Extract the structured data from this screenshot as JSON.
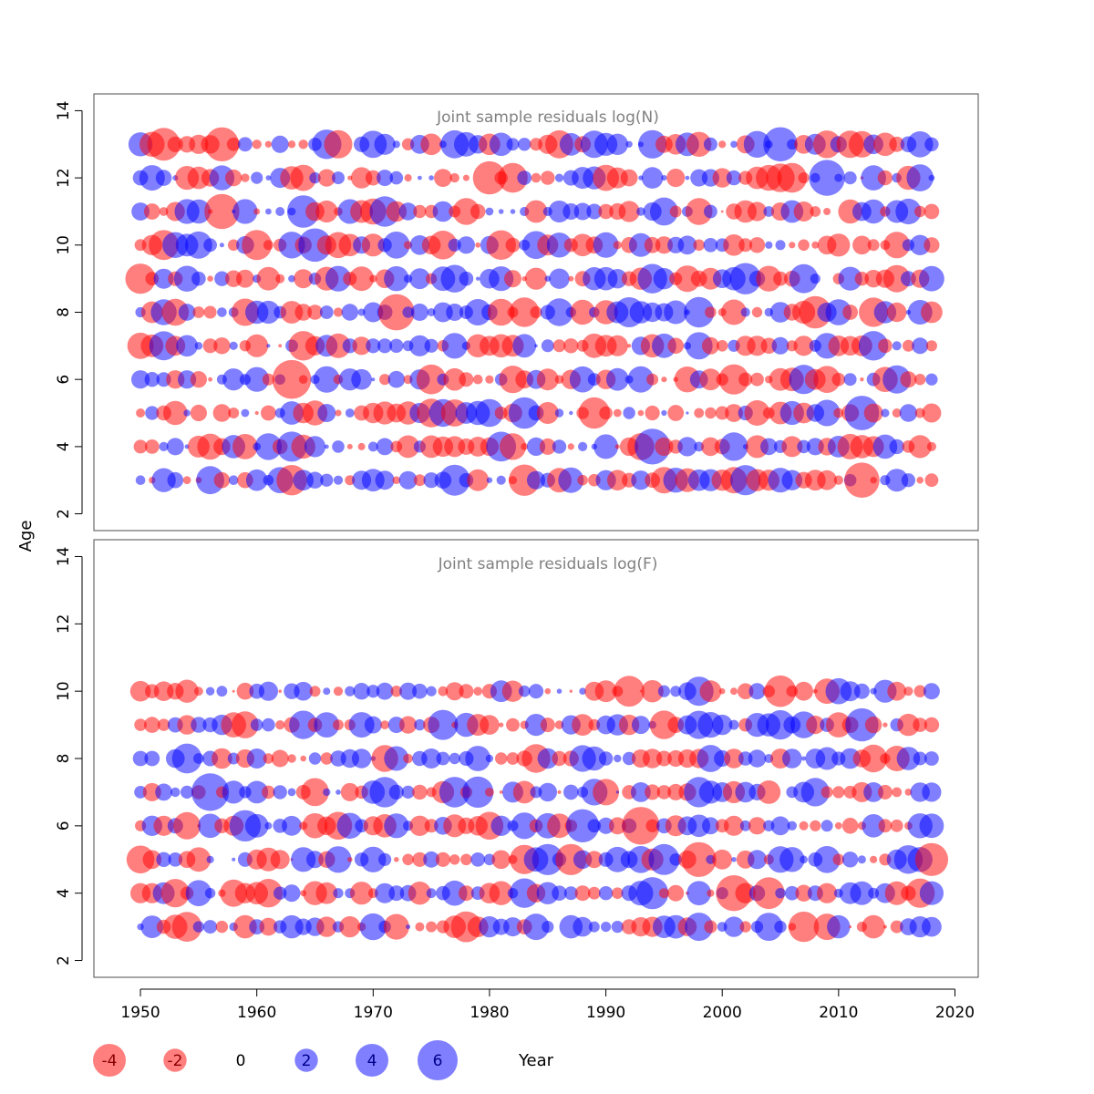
{
  "colors": {
    "negative": "#ff0000",
    "positive": "#0000ff",
    "frame": "#4d4d4d",
    "title": "#808080"
  },
  "chart_data": [
    {
      "type": "scatter",
      "title": "Joint sample residuals log(N)",
      "xlabel": "Year",
      "ylabel": "Age",
      "xlim": [
        1946,
        2022
      ],
      "ylim": [
        1.5,
        14.5
      ],
      "years": [
        1950,
        2018
      ],
      "ages": [
        3,
        4,
        5,
        6,
        7,
        8,
        9,
        10,
        11,
        12,
        13
      ],
      "grid": false,
      "seed": 1234
    },
    {
      "type": "scatter",
      "title": "Joint sample residuals log(F)",
      "xlabel": "Year",
      "ylabel": "Age",
      "xlim": [
        1946,
        2022
      ],
      "ylim": [
        1.5,
        14.5
      ],
      "years": [
        1950,
        2018
      ],
      "ages": [
        3,
        4,
        5,
        6,
        7,
        8,
        9,
        10
      ],
      "grid": false,
      "seed": 4321
    }
  ],
  "axes": {
    "x_ticks": [
      "1950",
      "1960",
      "1970",
      "1980",
      "1990",
      "2000",
      "2010",
      "2020"
    ],
    "y_ticks": [
      "2",
      "4",
      "6",
      "8",
      "10",
      "12",
      "14"
    ],
    "xlabel": "Year",
    "ylabel": "Age"
  },
  "legend": {
    "title": "Year",
    "items": [
      {
        "label": "-4",
        "value": -4
      },
      {
        "label": "-2",
        "value": -2
      },
      {
        "label": "0",
        "value": 0
      },
      {
        "label": "2",
        "value": 2
      },
      {
        "label": "4",
        "value": 4
      },
      {
        "label": "6",
        "value": 6
      }
    ]
  }
}
